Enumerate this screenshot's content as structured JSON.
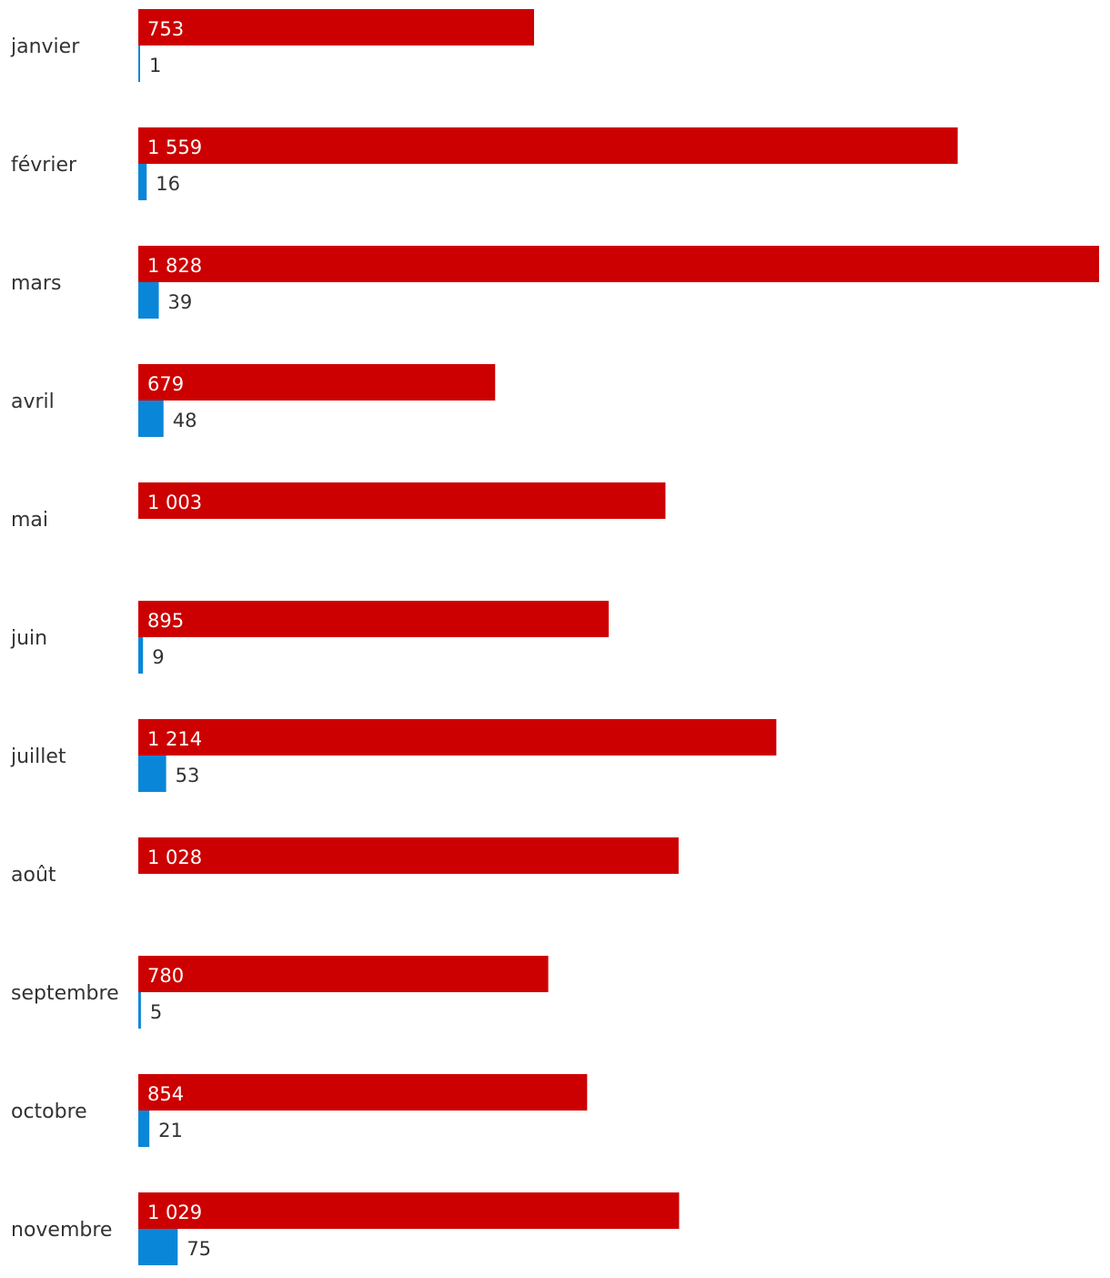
{
  "chart_data": {
    "type": "bar",
    "orientation": "horizontal",
    "categories": [
      "janvier",
      "février",
      "mars",
      "avril",
      "mai",
      "juin",
      "juillet",
      "août",
      "septembre",
      "octobre",
      "novembre"
    ],
    "series": [
      {
        "color": "#cc0000",
        "values": [
          753,
          1559,
          1828,
          679,
          1003,
          895,
          1214,
          1028,
          780,
          854,
          1029
        ],
        "labels": [
          "753",
          "1 559",
          "1 828",
          "679",
          "1 003",
          "895",
          "1 214",
          "1 028",
          "780",
          "854",
          "1 029"
        ]
      },
      {
        "color": "#0a86d8",
        "values": [
          1,
          16,
          39,
          48,
          null,
          9,
          53,
          null,
          5,
          21,
          75
        ],
        "labels": [
          "1",
          "16",
          "39",
          "48",
          "",
          "9",
          "53",
          "",
          "5",
          "21",
          "75"
        ]
      }
    ],
    "xlim": [
      0,
      1828
    ],
    "grid": false,
    "legend": "none",
    "title": "",
    "xlabel": "",
    "ylabel": ""
  }
}
